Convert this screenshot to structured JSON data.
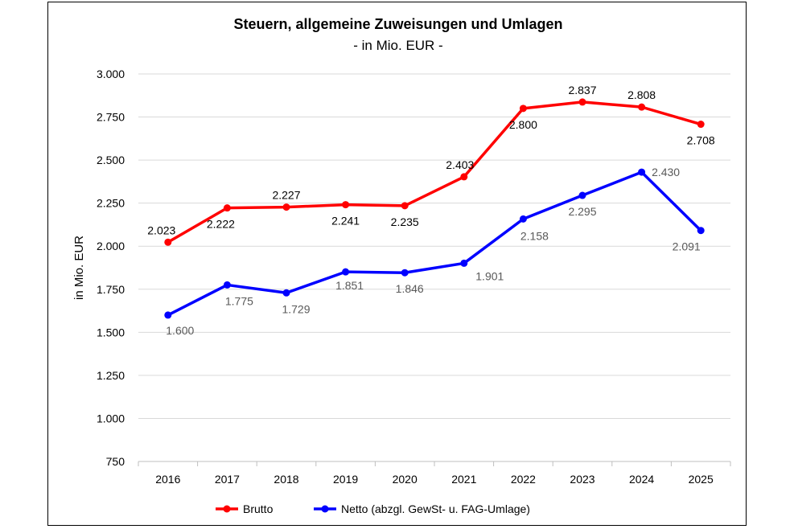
{
  "chart_data": {
    "type": "line",
    "title": "Steuern, allgemeine  Zuweisungen und Umlagen",
    "subtitle": "- in Mio. EUR -",
    "xlabel": "",
    "ylabel": "in Mio. EUR",
    "ylim": [
      750,
      3000
    ],
    "ytick_step": 250,
    "yticks": [
      "750",
      "1.000",
      "1.250",
      "1.500",
      "1.750",
      "2.000",
      "2.250",
      "2.500",
      "2.750",
      "3.000"
    ],
    "grid": true,
    "legend": "bottom",
    "categories": [
      "2016",
      "2017",
      "2018",
      "2019",
      "2020",
      "2021",
      "2022",
      "2023",
      "2024",
      "2025"
    ],
    "series": [
      {
        "name": "Brutto",
        "color": "#ff0000",
        "values": [
          2023,
          2222,
          2227,
          2241,
          2235,
          2403,
          2800,
          2837,
          2808,
          2708
        ],
        "labels": [
          "2.023",
          "2.222",
          "2.227",
          "2.241",
          "2.235",
          "2.403",
          "2.800",
          "2.837",
          "2.808",
          "2.708"
        ],
        "label_color": "#000000"
      },
      {
        "name": "Netto (abzgl. GewSt- u. FAG-Umlage)",
        "color": "#0000ff",
        "values": [
          1600,
          1775,
          1729,
          1851,
          1846,
          1901,
          2158,
          2295,
          2430,
          2091
        ],
        "labels": [
          "1.600",
          "1.775",
          "1.729",
          "1.851",
          "1.846",
          "1.901",
          "2.158",
          "2.295",
          "2.430",
          "2.091"
        ],
        "label_color": "#595959"
      }
    ]
  }
}
